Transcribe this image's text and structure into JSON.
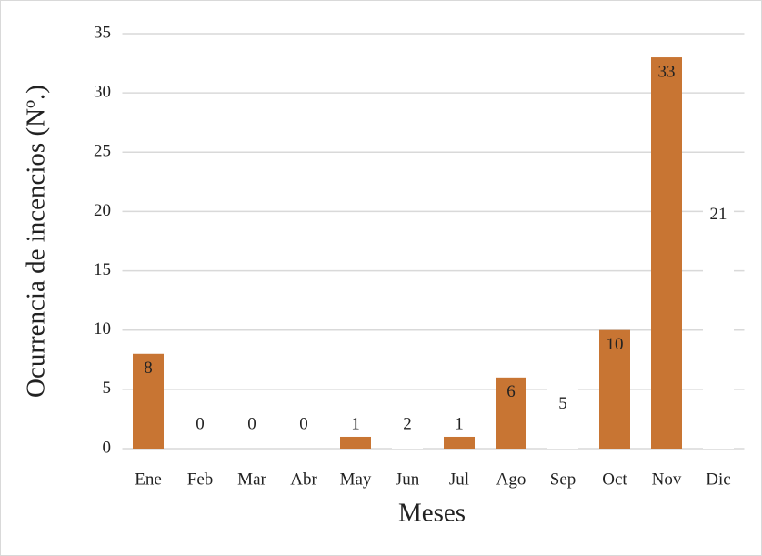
{
  "chart_data": {
    "type": "bar",
    "x_label": "Meses",
    "y_label": "Ocurrencia de incencios (Nº.)",
    "categories": [
      "Ene",
      "Feb",
      "Mar",
      "Abr",
      "May",
      "Jun",
      "Jul",
      "Ago",
      "Sep",
      "Oct",
      "Nov",
      "Dic"
    ],
    "values": [
      8,
      0,
      0,
      0,
      1,
      2,
      1,
      6,
      5,
      10,
      33,
      21
    ],
    "colors": [
      "#c87533",
      "#c87533",
      "#c87533",
      "#c87533",
      "#c87533",
      "#ffffff",
      "#c87533",
      "#c87533",
      "#ffffff",
      "#c87533",
      "#c87533",
      "#ffffff"
    ],
    "ylim": [
      0,
      35
    ],
    "yticks": [
      0,
      5,
      10,
      15,
      20,
      25,
      30,
      35
    ],
    "grid": true
  }
}
